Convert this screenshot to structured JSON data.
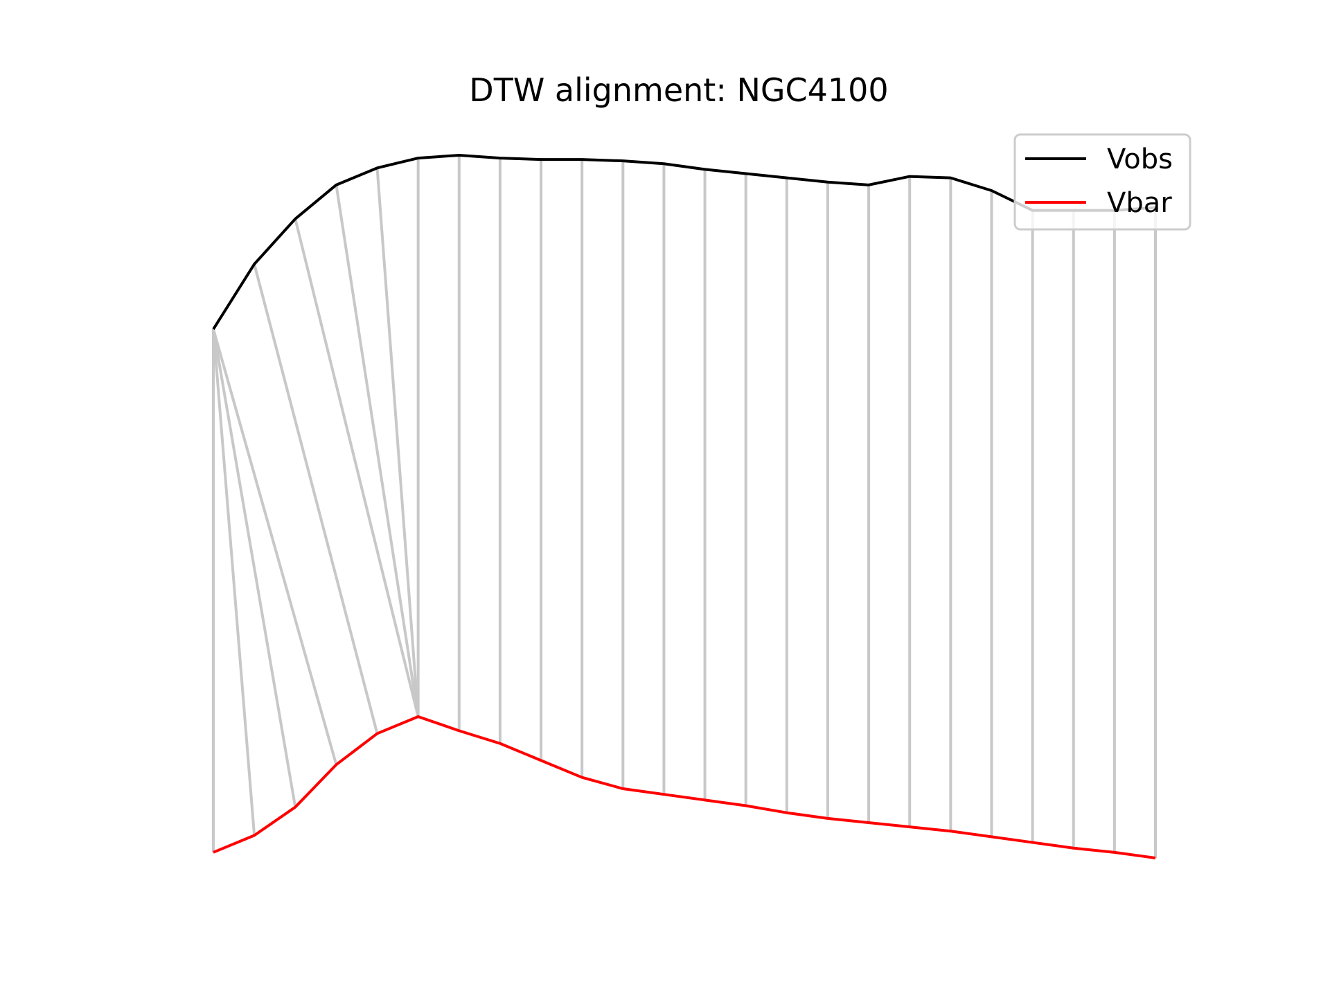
{
  "chart_data": {
    "type": "line",
    "title": "DTW alignment: NGC4100",
    "xlabel": "",
    "ylabel": "",
    "axes_visible": false,
    "grid": false,
    "legend_position": "top-right",
    "x": [
      0,
      1,
      2,
      3,
      4,
      5,
      6,
      7,
      8,
      9,
      10,
      11,
      12,
      13,
      14,
      15,
      16,
      17,
      18,
      19,
      20,
      21,
      22,
      23
    ],
    "series": [
      {
        "name": "Vobs",
        "color": "#000000",
        "values": [
          0.3,
          0.53,
          0.69,
          0.81,
          0.87,
          0.905,
          0.915,
          0.905,
          0.9,
          0.9,
          0.895,
          0.885,
          0.865,
          0.85,
          0.835,
          0.82,
          0.81,
          0.84,
          0.835,
          0.79,
          0.72,
          0.72,
          0.72,
          0.73
        ]
      },
      {
        "name": "Vbar",
        "color": "#ff0000",
        "values": [
          -1.55,
          -1.49,
          -1.39,
          -1.24,
          -1.13,
          -1.07,
          -1.12,
          -1.165,
          -1.225,
          -1.285,
          -1.325,
          -1.345,
          -1.365,
          -1.385,
          -1.41,
          -1.43,
          -1.445,
          -1.46,
          -1.475,
          -1.495,
          -1.515,
          -1.535,
          -1.55,
          -1.57
        ]
      }
    ],
    "alignment_color": "#c8c8c8",
    "alignment_pairs": [
      [
        0,
        0
      ],
      [
        0,
        1
      ],
      [
        0,
        2
      ],
      [
        0,
        3
      ],
      [
        1,
        4
      ],
      [
        2,
        5
      ],
      [
        3,
        5
      ],
      [
        4,
        5
      ],
      [
        5,
        5
      ],
      [
        6,
        6
      ],
      [
        7,
        7
      ],
      [
        8,
        8
      ],
      [
        9,
        9
      ],
      [
        10,
        10
      ],
      [
        11,
        11
      ],
      [
        12,
        12
      ],
      [
        13,
        13
      ],
      [
        14,
        14
      ],
      [
        15,
        15
      ],
      [
        16,
        16
      ],
      [
        17,
        17
      ],
      [
        18,
        18
      ],
      [
        19,
        19
      ],
      [
        20,
        20
      ],
      [
        21,
        21
      ],
      [
        22,
        22
      ],
      [
        23,
        23
      ]
    ]
  }
}
